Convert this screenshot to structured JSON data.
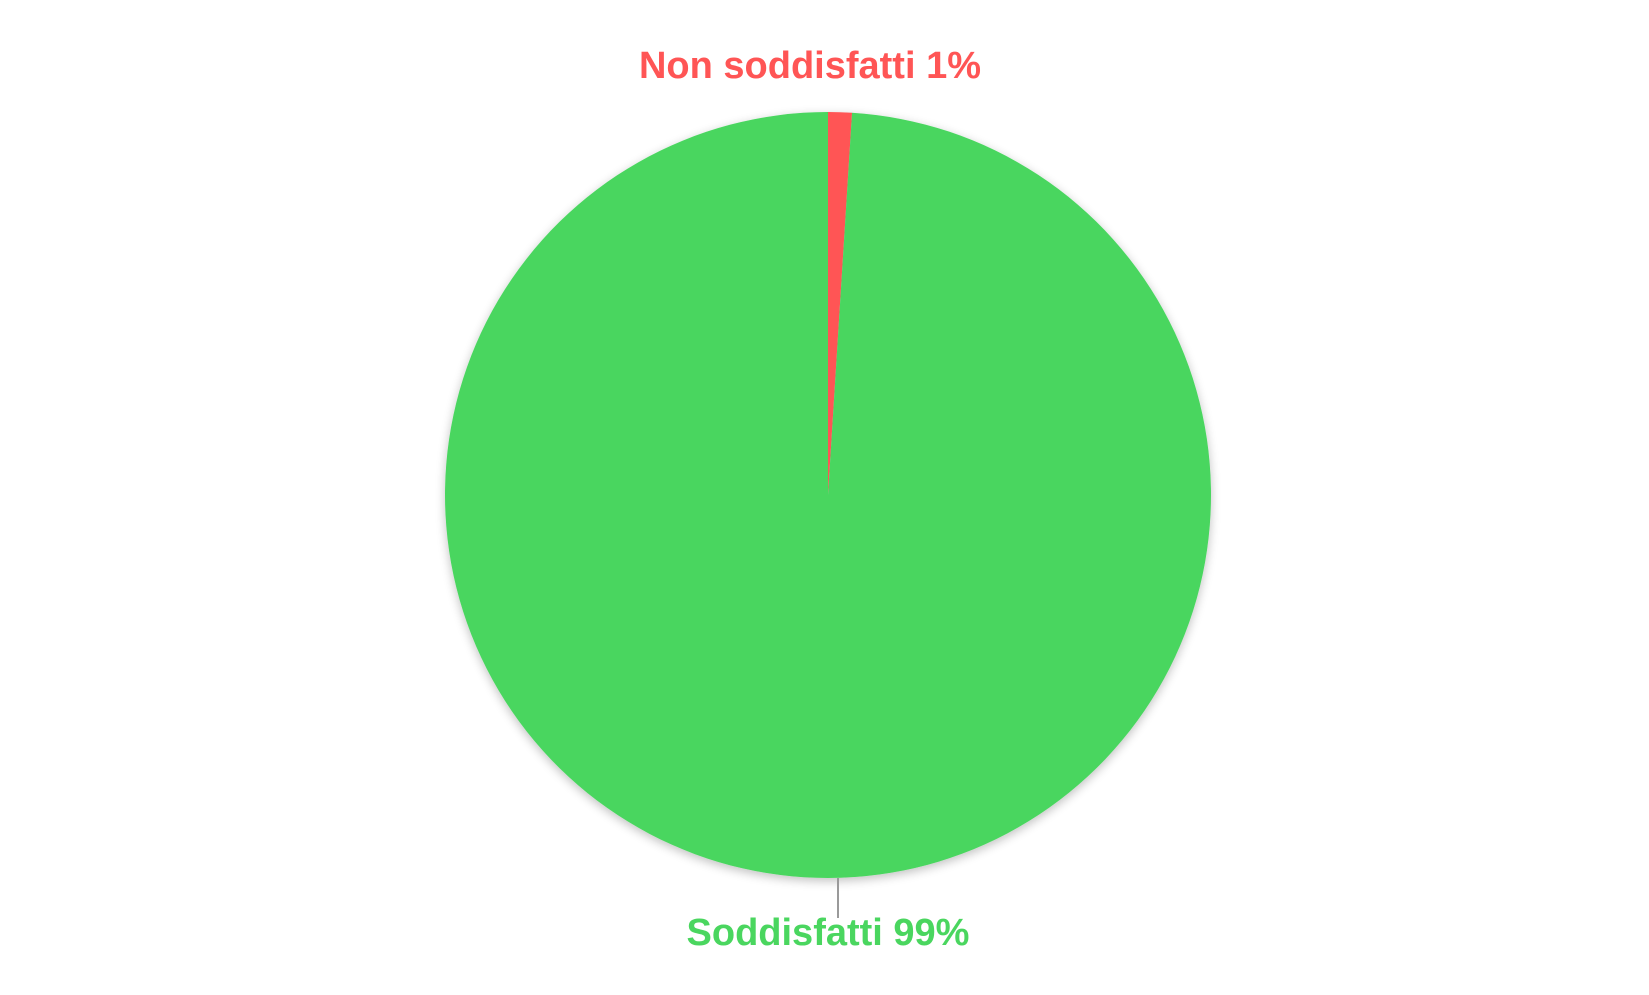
{
  "chart_data": {
    "type": "pie",
    "title": "",
    "start_angle_deg": 0,
    "direction": "clockwise",
    "slices": [
      {
        "label": "Non soddisfatti 1%",
        "value": 1,
        "color": "#FF5555"
      },
      {
        "label": "Soddisfatti 99%",
        "value": 99,
        "color": "#4AD65F"
      }
    ],
    "legend": "none",
    "data_labels": "outside"
  }
}
